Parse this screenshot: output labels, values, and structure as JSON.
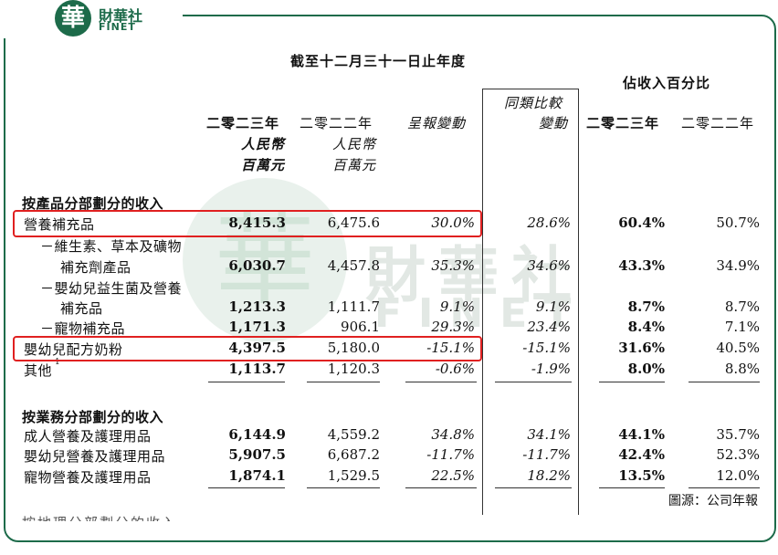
{
  "logo": {
    "badge": "華",
    "name_cn": "財華社",
    "name_en": "FINET"
  },
  "watermark": {
    "badge": "華",
    "name_cn": "財華社",
    "name_en": "FINET"
  },
  "header": {
    "period": "截至十二月三十一日止年度",
    "pct_group": "佔收入百分比",
    "col_2023": "二零二三年",
    "col_2022": "二零二二年",
    "unit_rmb": "人民幣",
    "unit_million": "百萬元",
    "reported_change": "呈報變動",
    "like_for_like_1": "同類比較",
    "like_for_like_2": "變動",
    "pct_2023": "二零二三年",
    "pct_2022": "二零二二年"
  },
  "section_product": {
    "title": "按產品分部劃分的收入",
    "rows": [
      {
        "label": "營養補充品",
        "v2023": "8,415.3",
        "v2022": "6,475.6",
        "reported": "30.0%",
        "lfl": "28.6%",
        "p2023": "60.4%",
        "p2022": "50.7%"
      },
      {
        "label": "－維生素、草本及礦物",
        "label2": "補充劑產品",
        "v2023": "6,030.7",
        "v2022": "4,457.8",
        "reported": "35.3%",
        "lfl": "34.6%",
        "p2023": "43.3%",
        "p2022": "34.9%"
      },
      {
        "label": "－嬰幼兒益生菌及營養",
        "label2": "補充品",
        "v2023": "1,213.3",
        "v2022": "1,111.7",
        "reported": "9.1%",
        "lfl": "9.1%",
        "p2023": "8.7%",
        "p2022": "8.7%"
      },
      {
        "label": "－寵物補充品",
        "v2023": "1,171.3",
        "v2022": "906.1",
        "reported": "29.3%",
        "lfl": "23.4%",
        "p2023": "8.4%",
        "p2022": "7.1%"
      },
      {
        "label": "嬰幼兒配方奶粉",
        "v2023": "4,397.5",
        "v2022": "5,180.0",
        "reported": "-15.1%",
        "lfl": "-15.1%",
        "p2023": "31.6%",
        "p2022": "40.5%"
      },
      {
        "label": "其他",
        "sup": "1",
        "v2023": "1,113.7",
        "v2022": "1,120.3",
        "reported": "-0.6%",
        "lfl": "-1.9%",
        "p2023": "8.0%",
        "p2022": "8.8%"
      }
    ]
  },
  "section_business": {
    "title": "按業務分部劃分的收入",
    "rows": [
      {
        "label": "成人營養及護理用品",
        "v2023": "6,144.9",
        "v2022": "4,559.2",
        "reported": "34.8%",
        "lfl": "34.1%",
        "p2023": "44.1%",
        "p2022": "35.7%"
      },
      {
        "label": "嬰幼兒營養及護理用品",
        "v2023": "5,907.5",
        "v2022": "6,687.2",
        "reported": "-11.7%",
        "lfl": "-11.7%",
        "p2023": "42.4%",
        "p2022": "52.3%"
      },
      {
        "label": "寵物營養及護理用品",
        "v2023": "1,874.1",
        "v2022": "1,529.5",
        "reported": "22.5%",
        "lfl": "18.2%",
        "p2023": "13.5%",
        "p2022": "12.0%"
      }
    ]
  },
  "source": "圖源：公司年報",
  "cut_text": "按地理分部劃分的收入"
}
